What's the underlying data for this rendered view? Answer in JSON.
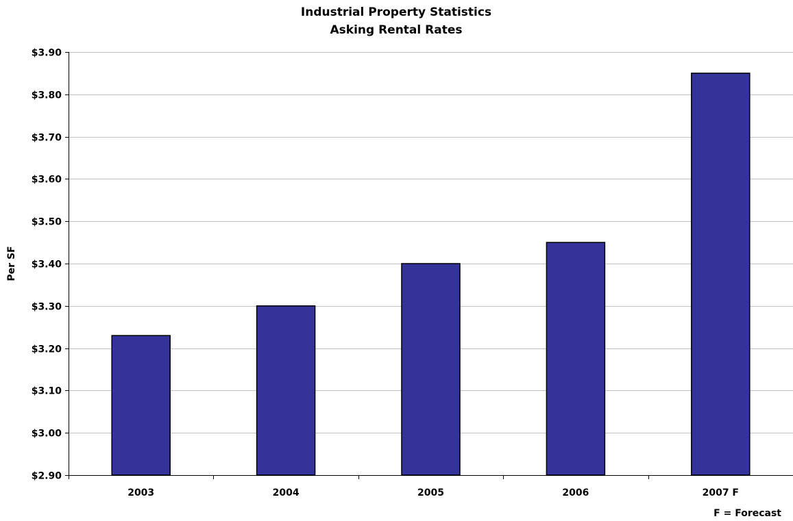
{
  "chart_data": {
    "type": "bar",
    "title": "Industrial Property Statistics",
    "subtitle": "Asking Rental Rates",
    "xlabel": "",
    "ylabel": "Per SF",
    "categories": [
      "2003",
      "2004",
      "2005",
      "2006",
      "2007 F"
    ],
    "values": [
      3.23,
      3.3,
      3.4,
      3.45,
      3.85
    ],
    "ylim": [
      2.9,
      3.9
    ],
    "yticks": [
      "$2.90",
      "$3.00",
      "$3.10",
      "$3.20",
      "$3.30",
      "$3.40",
      "$3.50",
      "$3.60",
      "$3.70",
      "$3.80",
      "$3.90"
    ],
    "ytick_values": [
      2.9,
      3.0,
      3.1,
      3.2,
      3.3,
      3.4,
      3.5,
      3.6,
      3.7,
      3.8,
      3.9
    ],
    "grid": true,
    "legend": "none",
    "annotation": "F = Forecast",
    "bar_color": "#333399",
    "gridline_color": "#c0c0c0"
  }
}
